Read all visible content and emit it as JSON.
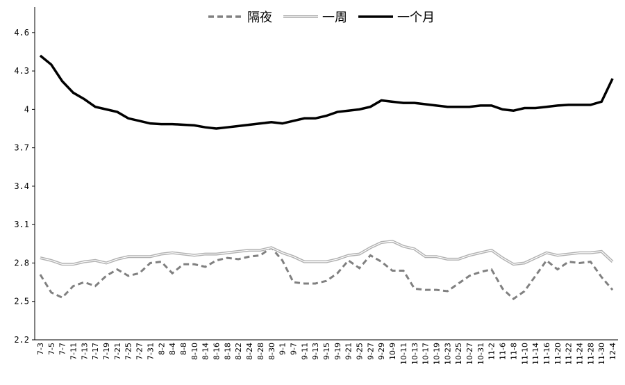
{
  "chart_data": {
    "type": "line",
    "categories": [
      "7-3",
      "7-5",
      "7-7",
      "7-11",
      "7-13",
      "7-17",
      "7-19",
      "7-21",
      "7-25",
      "7-27",
      "7-31",
      "8-2",
      "8-4",
      "8-8",
      "8-10",
      "8-14",
      "8-16",
      "8-18",
      "8-22",
      "8-24",
      "8-28",
      "8-30",
      "9-1",
      "9-7",
      "9-11",
      "9-13",
      "9-15",
      "9-19",
      "9-21",
      "9-25",
      "9-27",
      "9-29",
      "10-9",
      "10-11",
      "10-13",
      "10-17",
      "10-19",
      "10-23",
      "10-25",
      "10-27",
      "10-31",
      "11-2",
      "11-6",
      "11-8",
      "11-10",
      "11-14",
      "11-16",
      "11-20",
      "11-22",
      "11-24",
      "11-28",
      "11-30",
      "12-4"
    ],
    "series": [
      {
        "name": "隔夜",
        "color": "#808080",
        "dash": true,
        "values": [
          2.71,
          2.57,
          2.53,
          2.62,
          2.65,
          2.62,
          2.7,
          2.75,
          2.7,
          2.72,
          2.8,
          2.81,
          2.72,
          2.79,
          2.79,
          2.77,
          2.82,
          2.84,
          2.83,
          2.85,
          2.86,
          2.92,
          2.82,
          2.65,
          2.64,
          2.64,
          2.66,
          2.72,
          2.82,
          2.76,
          2.86,
          2.81,
          2.74,
          2.74,
          2.6,
          2.59,
          2.59,
          2.58,
          2.64,
          2.7,
          2.73,
          2.75,
          2.6,
          2.52,
          2.58,
          2.7,
          2.82,
          2.75,
          2.81,
          2.8,
          2.81,
          2.69,
          2.59
        ]
      },
      {
        "name": "一周",
        "color": "#b0b0b0",
        "double": true,
        "values": [
          2.84,
          2.82,
          2.79,
          2.79,
          2.81,
          2.82,
          2.8,
          2.83,
          2.85,
          2.85,
          2.85,
          2.87,
          2.88,
          2.87,
          2.86,
          2.87,
          2.87,
          2.88,
          2.89,
          2.9,
          2.9,
          2.92,
          2.88,
          2.85,
          2.81,
          2.81,
          2.81,
          2.83,
          2.86,
          2.87,
          2.92,
          2.96,
          2.97,
          2.93,
          2.91,
          2.85,
          2.85,
          2.83,
          2.83,
          2.86,
          2.88,
          2.9,
          2.84,
          2.79,
          2.8,
          2.84,
          2.88,
          2.86,
          2.87,
          2.88,
          2.88,
          2.89,
          2.81
        ]
      },
      {
        "name": "一个月",
        "color": "#000000",
        "values": [
          4.42,
          4.35,
          4.22,
          4.13,
          4.08,
          4.02,
          4.0,
          3.98,
          3.93,
          3.91,
          3.89,
          3.885,
          3.885,
          3.88,
          3.875,
          3.86,
          3.85,
          3.86,
          3.87,
          3.88,
          3.89,
          3.9,
          3.89,
          3.91,
          3.93,
          3.93,
          3.95,
          3.98,
          3.99,
          4.0,
          4.02,
          4.07,
          4.06,
          4.05,
          4.05,
          4.04,
          4.03,
          4.02,
          4.02,
          4.02,
          4.03,
          4.03,
          4.0,
          3.99,
          4.01,
          4.01,
          4.02,
          4.03,
          4.035,
          4.035,
          4.035,
          4.06,
          4.24
        ]
      }
    ],
    "ylim": [
      2.2,
      4.8
    ],
    "yticks": [
      2.2,
      2.5,
      2.8,
      3.1,
      3.4,
      3.7,
      4,
      4.3,
      4.6
    ],
    "grid": false,
    "legend": "top"
  }
}
